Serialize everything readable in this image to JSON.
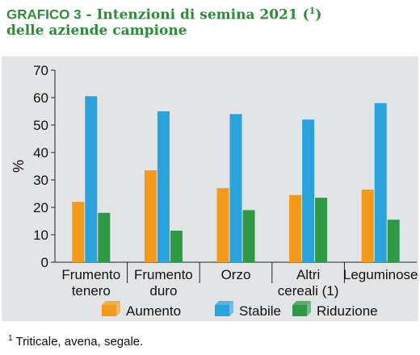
{
  "header": {
    "title_prefix": "GRAFICO 3",
    "title_rest": " - Intenzioni di semina 2021 (",
    "title_sup": "1",
    "title_close": ")",
    "title_line2": "delle aziende campione"
  },
  "chart_data": {
    "type": "bar",
    "title": "GRAFICO 3 - Intenzioni di semina 2021 (1) delle aziende campione",
    "categories": [
      [
        "Frumento",
        "tenero"
      ],
      [
        "Frumento",
        "duro"
      ],
      [
        "Orzo"
      ],
      [
        "Altri",
        "cereali (1)"
      ],
      [
        "Leguminose"
      ]
    ],
    "series": [
      {
        "name": "Aumento",
        "color": "#f39a1b",
        "values": [
          22,
          33.5,
          27,
          24.5,
          26.5
        ]
      },
      {
        "name": "Stabile",
        "color": "#2aa3dc",
        "values": [
          60.5,
          55,
          54,
          52,
          58
        ]
      },
      {
        "name": "Riduzione",
        "color": "#2e9a45",
        "values": [
          18,
          11.5,
          19,
          23.5,
          15.5
        ]
      }
    ],
    "ylabel": "%",
    "ylim": [
      0,
      70
    ],
    "yticks": [
      0,
      10,
      20,
      30,
      40,
      50,
      60,
      70
    ],
    "grid": false,
    "legend": "bottom"
  },
  "footnote": {
    "sup": "1",
    "text": " Triticale, avena, segale."
  }
}
